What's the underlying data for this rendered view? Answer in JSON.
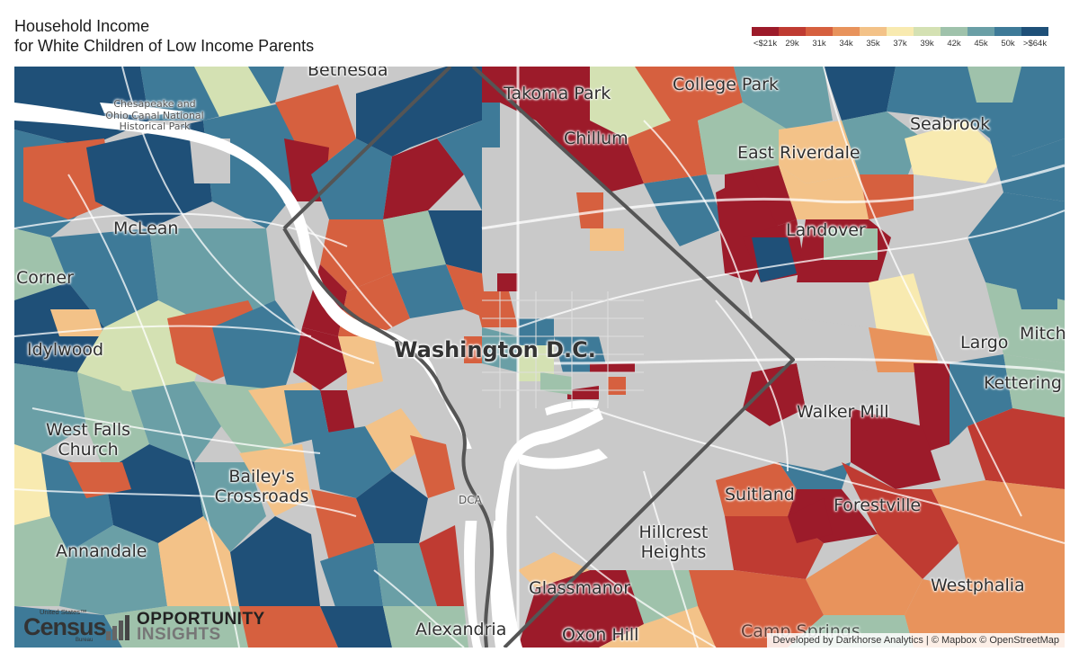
{
  "header": {
    "title_line1": "Household Income",
    "title_line2": "for White Children of Low Income Parents"
  },
  "legend": {
    "labels": [
      "<$21k",
      "29k",
      "31k",
      "34k",
      "35k",
      "37k",
      "39k",
      "42k",
      "45k",
      "50k",
      ">$64k"
    ],
    "colors": [
      "#9c1b2a",
      "#bf3b32",
      "#d6603f",
      "#e8935c",
      "#f3c288",
      "#f8eab0",
      "#d4e1b3",
      "#9fc2ab",
      "#6a9fa6",
      "#3e7a98",
      "#1f5078"
    ]
  },
  "map": {
    "colors": {
      "water": "#ffffff",
      "no_data": "#c9c9c9",
      "roads": "#ffffff",
      "boundary": "#555555"
    },
    "places": [
      {
        "name": "Bethesda"
      },
      {
        "name": "Takoma Park"
      },
      {
        "name": "College Park"
      },
      {
        "name": "Chillum"
      },
      {
        "name": "Seabrook"
      },
      {
        "name": "East Riverdale"
      },
      {
        "name": "McLean"
      },
      {
        "name": "Landover"
      },
      {
        "name": "Corner"
      },
      {
        "name": "Idylwood"
      },
      {
        "name": "Washington D.C."
      },
      {
        "name": "Largo"
      },
      {
        "name": "Mitch"
      },
      {
        "name": "Kettering"
      },
      {
        "name": "Walker Mill"
      },
      {
        "name": "West Falls Church"
      },
      {
        "name": "Bailey's Crossroads"
      },
      {
        "name": "Suitland"
      },
      {
        "name": "Forestville"
      },
      {
        "name": "DCA"
      },
      {
        "name": "Hillcrest Heights"
      },
      {
        "name": "Annandale"
      },
      {
        "name": "Westphalia"
      },
      {
        "name": "Glassmanor"
      },
      {
        "name": "Alexandria"
      },
      {
        "name": "Oxon Hill"
      },
      {
        "name": "Camp Springs"
      },
      {
        "name": "Chesapeake and Ohio Canal National Historical Park"
      }
    ]
  },
  "logos": {
    "census_top": "United States™",
    "census_main": "Census",
    "census_bottom": "Bureau",
    "oi_line1": "OPPORTUNITY",
    "oi_line2": "INSIGHTS"
  },
  "attribution": "Developed by Darkhorse Analytics | © Mapbox © OpenStreetMap"
}
